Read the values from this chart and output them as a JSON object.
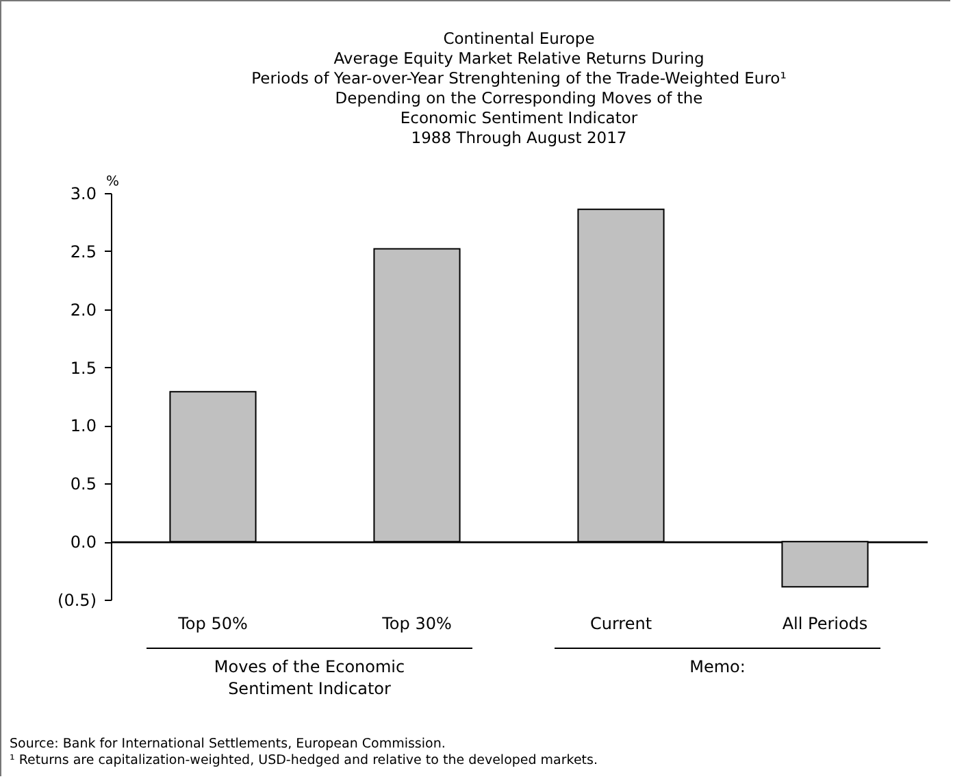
{
  "chart_data": {
    "type": "bar",
    "title": [
      "Continental Europe",
      "Average Equity Market Relative Returns During",
      "Periods of Year-over-Year Strenghtening of the Trade-Weighted Euro¹",
      "Depending on the Corresponding Moves of the",
      "Economic Sentiment Indicator",
      "1988 Through August 2017"
    ],
    "ylabel": "%",
    "categories": [
      "Top 50%",
      "Top 30%",
      "Current",
      "All Periods"
    ],
    "values": [
      1.29,
      2.52,
      2.86,
      -0.39
    ],
    "color": "#c0c0c0",
    "ylim": [
      -0.5,
      3.0
    ],
    "yticks": [
      {
        "value": -0.5,
        "label": "(0.5)"
      },
      {
        "value": 0,
        "label": "0.0"
      },
      {
        "value": 0.5,
        "label": "0.5"
      },
      {
        "value": 1,
        "label": "1.0"
      },
      {
        "value": 1.5,
        "label": "1.5"
      },
      {
        "value": 2,
        "label": "2.0"
      },
      {
        "value": 2.5,
        "label": "2.5"
      },
      {
        "value": 3,
        "label": "3.0"
      }
    ],
    "annotations": [
      "Moves of the Economic Sentiment Indicator",
      "Memo:",
      "Source: Bank for International Settlements, European Commission.",
      "¹ Returns are capitalization-weighted, USD-hedged and relative to the developed markets."
    ]
  }
}
